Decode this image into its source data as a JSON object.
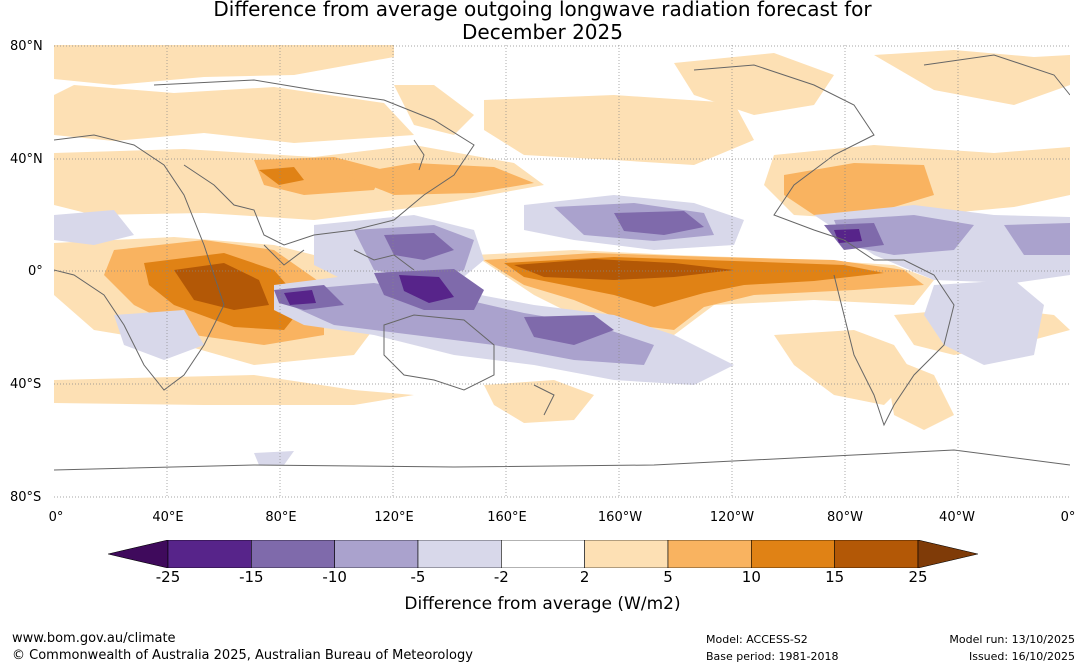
{
  "title_line1": "Difference from average outgoing longwave radiation forecast for",
  "title_line2": "December 2025",
  "lat_labels": [
    "80°N",
    "40°N",
    "0°",
    "40°S",
    "80°S"
  ],
  "lon_labels": [
    "0°",
    "40°E",
    "80°E",
    "120°E",
    "160°E",
    "160°W",
    "120°W",
    "80°W",
    "40°W",
    "0°"
  ],
  "colorbar": {
    "title": "Difference from average (W/m2)",
    "tick_labels": [
      "-25",
      "-15",
      "-10",
      "-5",
      "-2",
      "2",
      "5",
      "10",
      "15",
      "25"
    ],
    "colors": [
      "#3f0a5c",
      "#57248a",
      "#7f6aab",
      "#aaa2cd",
      "#d8d8ea",
      "#ffffff",
      "#fde0b4",
      "#f9b360",
      "#e08215",
      "#b35806",
      "#7f3b08"
    ]
  },
  "footer": {
    "website": "www.bom.gov.au/climate",
    "copyright": "© Commonwealth of Australia 2025, Australian Bureau of Meteorology",
    "model": "Model: ACCESS-S2",
    "base_period": "Base period: 1981-2018",
    "model_run": "Model run: 13/10/2025",
    "issued": "Issued: 16/10/2025"
  }
}
